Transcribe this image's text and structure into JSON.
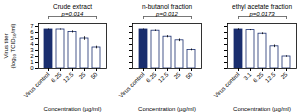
{
  "chart_data": [
    {
      "type": "bar",
      "title": "Crude extract",
      "annotations": [
        "p=0.014"
      ],
      "categories": [
        "Virus control",
        "6.25",
        "12.5",
        "25",
        "50"
      ],
      "values": [
        6.5,
        6.5,
        6.1,
        5.0,
        3.5
      ],
      "errors": [
        0.08,
        0.08,
        0.18,
        0.3,
        0.22
      ],
      "colors": [
        "#1a2e6e",
        "#ffffff",
        "#ffffff",
        "#ffffff",
        "#ffffff"
      ],
      "color": "#1a2e6e",
      "ylabel": "Virus titer\n(log₁₀ TCID₅₀/ml)",
      "xlabel": "Concentration (µg/ml)",
      "ylim": [
        0,
        7.5
      ],
      "yticks": [
        0,
        1,
        2,
        3,
        4,
        5,
        6,
        7
      ]
    },
    {
      "type": "bar",
      "title": "n-butanol fraction",
      "annotations": [
        "p=0.012"
      ],
      "categories": [
        "Virus control",
        "6.25",
        "12.5",
        "25",
        "50"
      ],
      "values": [
        6.5,
        6.3,
        5.3,
        4.7,
        3.1
      ],
      "errors": [
        0.08,
        0.12,
        0.18,
        0.22,
        0.15
      ],
      "colors": [
        "#1a2e6e",
        "#ffffff",
        "#ffffff",
        "#ffffff",
        "#ffffff"
      ],
      "color": "#1a2e6e",
      "xlabel": "Concentration (µg/ml)",
      "ylim": [
        0,
        7.5
      ],
      "yticks": [
        0,
        1,
        2,
        3,
        4,
        5,
        6,
        7
      ],
      "tick_labels": "x"
    },
    {
      "type": "bar",
      "title": "ethyl acetate fraction",
      "annotations": [
        "p=0.0173"
      ],
      "categories": [
        "Virus control",
        "3.1",
        "6.25",
        "12.5",
        "25"
      ],
      "values": [
        6.5,
        6.4,
        5.8,
        3.7,
        2.0
      ],
      "errors": [
        0.12,
        0.08,
        0.15,
        0.22,
        0.12
      ],
      "colors": [
        "#1a2e6e",
        "#ffffff",
        "#ffffff",
        "#ffffff",
        "#ffffff"
      ],
      "color": "#1a2e6e",
      "xlabel": "Concentration (µg/ml)",
      "ylim": [
        0,
        7.5
      ],
      "yticks": [
        0,
        1,
        2,
        3,
        4,
        5,
        6,
        7
      ],
      "tick_labels": "x"
    }
  ]
}
